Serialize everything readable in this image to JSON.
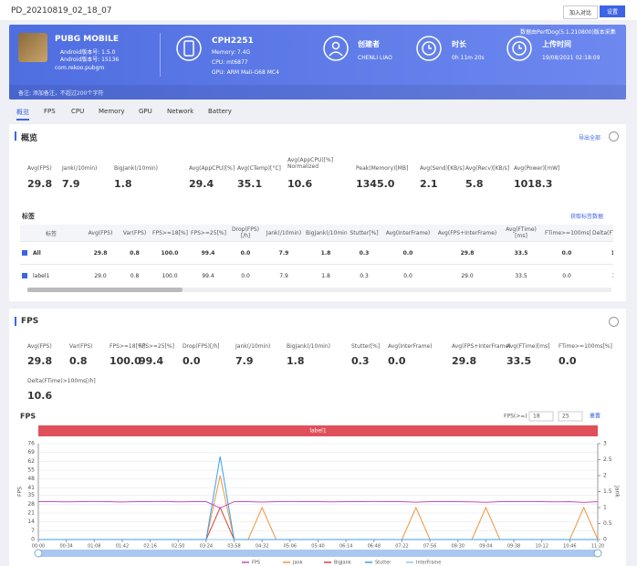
{
  "header": {
    "title": "PD_20210819_02_18_07",
    "buttons": [
      "加入对比",
      "设置"
    ]
  },
  "app": {
    "name": "PUBG MOBILE",
    "lines": [
      "Android版本号: 1.5.0",
      "Android版本号: 15136"
    ],
    "package": "com.rekoo.pubgm"
  },
  "device": {
    "name": "CPH2251",
    "specs": [
      "Memory: 7.4G",
      "CPU: mt6877",
      "GPU: ARM Mali-G68 MC4"
    ]
  },
  "info": [
    {
      "label": "创建者",
      "value": "CHENLI LIAO"
    },
    {
      "label": "时长",
      "value": "0h 11m 20s"
    },
    {
      "label": "上传时间",
      "value": "19/08/2021 02:18:09"
    }
  ],
  "collector": "数据由PerfDog(5.1.210800)版本采集",
  "remark": "备注: 添加备注，不超过200个字符",
  "tabs": [
    "概览",
    "FPS",
    "CPU",
    "Memory",
    "GPU",
    "Network",
    "Battery"
  ],
  "overview": {
    "title": "概览",
    "action": "导出全部",
    "metrics": [
      {
        "label": "Avg(FPS)",
        "value": "29.8"
      },
      {
        "label": "Jank(/10min)",
        "value": "7.9"
      },
      {
        "label": "BigJank(/10min)",
        "value": "1.8"
      },
      {
        "label": "Avg(AppCPU)[%]",
        "value": "29.4"
      },
      {
        "label": "Avg(CTemp)[°C]",
        "value": "35.1"
      },
      {
        "label": "Avg(AppCPU)[%] Normalized",
        "value": "10.6"
      },
      {
        "label": "Peak(Memory)[MB]",
        "value": "1345.0"
      },
      {
        "label": "Avg(Send)[KB/s]",
        "value": "2.1"
      },
      {
        "label": "Avg(Recv)[KB/s]",
        "value": "5.8"
      },
      {
        "label": "Avg(Power)[mW]",
        "value": "1018.3"
      }
    ],
    "tag_title": "标签",
    "tag_action": "获取标签数据",
    "table": {
      "headers": [
        "标签",
        "Avg(FPS)",
        "Var(FPS)",
        "FPS>=18[%]",
        "FPS>=25[%]",
        "Drop(FPS)[/h]",
        "Jank(/10min)",
        "BigJank(/10min)",
        "Stutter[%]",
        "Avg(InterFrame)",
        "Avg(FPS+InterFrame)",
        "Avg(FTime)[ms]",
        "FTime>=100ms[%]",
        "Delta(FTime)>100ms[/h]"
      ],
      "rows": [
        [
          "All",
          "29.8",
          "0.8",
          "100.0",
          "99.4",
          "0.0",
          "7.9",
          "1.8",
          "0.3",
          "0.0",
          "29.8",
          "33.5",
          "0.0",
          "10.6"
        ],
        [
          "label1",
          "29.0",
          "0.8",
          "100.0",
          "99.4",
          "0.0",
          "7.9",
          "1.8",
          "0.3",
          "0.0",
          "29.0",
          "33.5",
          "0.0",
          "10.6"
        ]
      ]
    }
  },
  "fps_section": {
    "title": "FPS",
    "metrics": [
      {
        "label": "Avg(FPS)",
        "value": "29.8"
      },
      {
        "label": "Var(FPS)",
        "value": "0.8"
      },
      {
        "label": "FPS>=18[%]",
        "value": "100.0"
      },
      {
        "label": "FPS>=25[%]",
        "value": "99.4"
      },
      {
        "label": "Drop(FPS)[/h]",
        "value": "0.0"
      },
      {
        "label": "Jank(/10min)",
        "value": "7.9"
      },
      {
        "label": "BigJank(/10min)",
        "value": "1.8"
      },
      {
        "label": "Stutter[%]",
        "value": "0.3"
      },
      {
        "label": "Avg(InterFrame)",
        "value": "0.0"
      },
      {
        "label": "Avg(FPS+InterFrame)",
        "value": "29.8"
      },
      {
        "label": "Avg(FTime)[ms]",
        "value": "33.5"
      },
      {
        "label": "FTime>=100ms[%]",
        "value": "0.0"
      },
      {
        "label": "Delta(FTime)>100ms[/h]",
        "value": "10.6"
      }
    ]
  },
  "chart_data": {
    "type": "line",
    "title": "FPS",
    "threshold_label": "FPS(>=)",
    "thresholds": [
      18,
      25
    ],
    "reset": "重置",
    "band_label": "label1",
    "y_label": "FPS",
    "y2_label": "Jank",
    "x": [
      0,
      17,
      34,
      51,
      68,
      85,
      102,
      119,
      136,
      153,
      170,
      187,
      204,
      221,
      238,
      255,
      272,
      289,
      306,
      323,
      340,
      357,
      374,
      391,
      408,
      425,
      442,
      459,
      476,
      493,
      510,
      527,
      544,
      561,
      578,
      595,
      612,
      629,
      646,
      663,
      680
    ],
    "xlim": [
      0,
      680
    ],
    "xticks": [
      {
        "value": 0,
        "label": "00:00"
      },
      {
        "value": 34,
        "label": "00:34"
      },
      {
        "value": 68,
        "label": "01:08"
      },
      {
        "value": 102,
        "label": "01:42"
      },
      {
        "value": 136,
        "label": "02:16"
      },
      {
        "value": 170,
        "label": "02:50"
      },
      {
        "value": 204,
        "label": "03:24"
      },
      {
        "value": 238,
        "label": "03:58"
      },
      {
        "value": 272,
        "label": "04:32"
      },
      {
        "value": 306,
        "label": "05:06"
      },
      {
        "value": 340,
        "label": "05:40"
      },
      {
        "value": 374,
        "label": "06:14"
      },
      {
        "value": 408,
        "label": "06:48"
      },
      {
        "value": 442,
        "label": "07:22"
      },
      {
        "value": 476,
        "label": "07:56"
      },
      {
        "value": 510,
        "label": "08:30"
      },
      {
        "value": 544,
        "label": "09:04"
      },
      {
        "value": 578,
        "label": "09:38"
      },
      {
        "value": 612,
        "label": "10:12"
      },
      {
        "value": 646,
        "label": "10:46"
      },
      {
        "value": 680,
        "label": "11:20"
      }
    ],
    "ylim": [
      0,
      76
    ],
    "yticks": [
      0,
      7,
      14,
      21,
      28,
      35,
      41,
      48,
      55,
      62,
      69,
      76
    ],
    "y2lim": [
      0,
      3
    ],
    "y2ticks": [
      0,
      0.5,
      1,
      1.5,
      2,
      2.5,
      3
    ],
    "series": [
      {
        "name": "FPS",
        "color": "#c34fc0",
        "values": [
          30,
          30,
          29.9,
          30,
          30.1,
          30,
          29.8,
          30,
          30,
          30.2,
          29.9,
          30,
          30,
          25,
          30,
          30,
          29.7,
          30,
          30.1,
          30,
          30,
          29.9,
          30,
          30,
          30.1,
          30,
          30,
          29.6,
          30,
          30,
          30,
          29.9,
          29.5,
          30,
          30,
          30.1,
          30,
          29.9,
          30,
          29.4,
          30
        ]
      },
      {
        "name": "Jank",
        "color": "#f0953f",
        "axis": "y2",
        "values": [
          0,
          0,
          0,
          0,
          0,
          0,
          0,
          0,
          0,
          0,
          0,
          0,
          0,
          2,
          0,
          0,
          1,
          0,
          0,
          0,
          0,
          0,
          0,
          0,
          0,
          0,
          0,
          1,
          0,
          0,
          0,
          0,
          1,
          0,
          0,
          0,
          0,
          0,
          0,
          1,
          0
        ]
      },
      {
        "name": "BigJank",
        "color": "#d9423f",
        "axis": "y2",
        "values": [
          0,
          0,
          0,
          0,
          0,
          0,
          0,
          0,
          0,
          0,
          0,
          0,
          0,
          1,
          0,
          0,
          0,
          0,
          0,
          0,
          0,
          0,
          0,
          0,
          0,
          0,
          0,
          0,
          0,
          0,
          0,
          0,
          0,
          0,
          0,
          0,
          0,
          0,
          0,
          0,
          0
        ]
      },
      {
        "name": "Stutter",
        "color": "#3d9fee",
        "axis": "y2",
        "values": [
          0,
          0,
          0,
          0,
          0,
          0,
          0,
          0,
          0,
          0,
          0,
          0,
          0,
          2.6,
          0,
          0,
          0,
          0,
          0,
          0,
          0,
          0,
          0,
          0,
          0,
          0,
          0,
          0,
          0,
          0,
          0,
          0,
          0,
          0,
          0,
          0,
          0,
          0,
          0,
          0,
          0
        ]
      },
      {
        "name": "InterFrame",
        "color": "#8fc9ef",
        "axis": "y2",
        "values": [
          0,
          0,
          0,
          0,
          0,
          0,
          0,
          0,
          0,
          0,
          0,
          0,
          0,
          0,
          0,
          0,
          0,
          0,
          0,
          0,
          0,
          0,
          0,
          0,
          0,
          0,
          0,
          0,
          0,
          0,
          0,
          0,
          0,
          0,
          0,
          0,
          0,
          0,
          0,
          0,
          0
        ]
      }
    ]
  }
}
